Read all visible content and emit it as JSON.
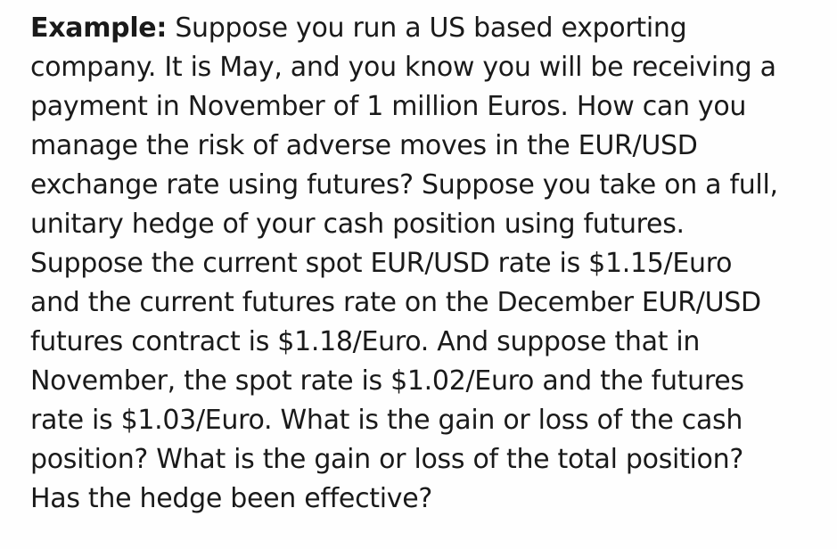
{
  "example": {
    "heading": "Example:",
    "lines": [
      "Suppose you run a US based exporting",
      "company. It is May, and you know you will be receiving a",
      "payment in November of 1 million Euros. How can you",
      "manage the risk of adverse moves in the EUR/USD",
      "exchange rate using futures? Suppose you take on a full,",
      "unitary hedge of your cash position using futures.",
      "Suppose the current spot EUR/USD rate is $1.15/Euro",
      "and the current futures rate on the December EUR/USD",
      "futures contract is $1.18/Euro. And suppose that in",
      "November, the spot rate is $1.02/Euro and the futures",
      "rate is $1.03/Euro. What is the gain or loss of the cash",
      "position? What is the gain or loss of the total position?",
      "Has the hedge been effective?"
    ]
  }
}
